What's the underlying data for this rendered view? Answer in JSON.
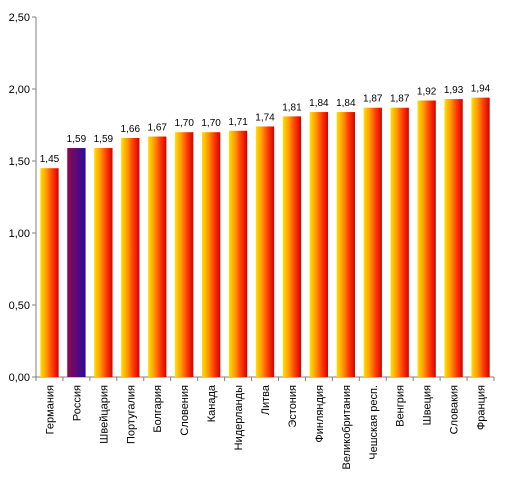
{
  "chart_data": {
    "type": "bar",
    "title": "",
    "xlabel": "",
    "ylabel": "",
    "ylim": [
      0,
      2.5
    ],
    "yticks": [
      "0,00",
      "0,50",
      "1,00",
      "1,50",
      "2,00",
      "2,50"
    ],
    "ytick_values": [
      0,
      0.5,
      1.0,
      1.5,
      2.0,
      2.5
    ],
    "grid": false,
    "legend": "none",
    "categories": [
      "Германия",
      "Россия",
      "Швейцария",
      "Португалия",
      "Болгария",
      "Словения",
      "Канада",
      "Нидерланды",
      "Литва",
      "Эстония",
      "Финляндия",
      "Великобритания",
      "Чешская респ.",
      "Венгрия",
      "Швеция",
      "Словакия",
      "Франция"
    ],
    "values": [
      1.45,
      1.59,
      1.59,
      1.66,
      1.67,
      1.7,
      1.7,
      1.71,
      1.74,
      1.81,
      1.84,
      1.84,
      1.87,
      1.87,
      1.92,
      1.93,
      1.94
    ],
    "value_labels": [
      "1,45",
      "1,59",
      "1,59",
      "1,66",
      "1,67",
      "1,70",
      "1,70",
      "1,71",
      "1,74",
      "1,81",
      "1,84",
      "1,84",
      "1,87",
      "1,87",
      "1,92",
      "1,93",
      "1,94"
    ],
    "highlight_category": "Россия",
    "colors": {
      "bar_gradient": [
        "#ffe000",
        "#ff9a00",
        "#ff3a00",
        "#d40000"
      ],
      "highlight_gradient": [
        "#8c0a46",
        "#5a0a7a",
        "#2a0a9a"
      ],
      "axis": "#808080"
    }
  }
}
